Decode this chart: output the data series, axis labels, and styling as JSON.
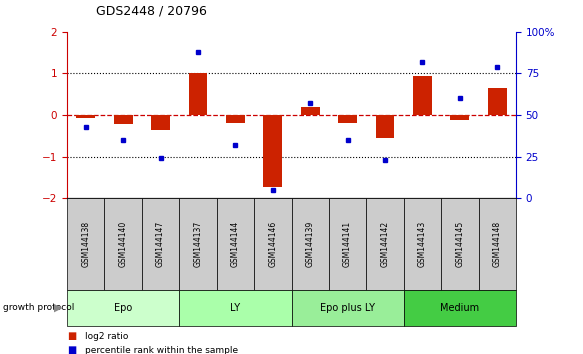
{
  "title": "GDS2448 / 20796",
  "samples": [
    "GSM144138",
    "GSM144140",
    "GSM144147",
    "GSM144137",
    "GSM144144",
    "GSM144146",
    "GSM144139",
    "GSM144141",
    "GSM144142",
    "GSM144143",
    "GSM144145",
    "GSM144148"
  ],
  "log2_ratio": [
    -0.08,
    -0.22,
    -0.35,
    1.02,
    -0.18,
    -1.72,
    0.2,
    -0.18,
    -0.55,
    0.95,
    -0.12,
    0.65
  ],
  "percentile_rank": [
    43,
    35,
    24,
    88,
    32,
    5,
    57,
    35,
    23,
    82,
    60,
    79
  ],
  "groups": [
    {
      "label": "Epo",
      "start": 0,
      "end": 3,
      "color": "#ccffcc"
    },
    {
      "label": "LY",
      "start": 3,
      "end": 6,
      "color": "#aaffaa"
    },
    {
      "label": "Epo plus LY",
      "start": 6,
      "end": 9,
      "color": "#99ee99"
    },
    {
      "label": "Medium",
      "start": 9,
      "end": 12,
      "color": "#44cc44"
    }
  ],
  "ylim_left": [
    -2,
    2
  ],
  "ylim_right": [
    0,
    100
  ],
  "bar_color": "#cc2200",
  "dot_color": "#0000cc",
  "background_color": "#ffffff",
  "zero_line_color": "#cc0000",
  "growth_protocol_label": "growth protocol",
  "sample_box_color": "#cccccc",
  "left_axis_color": "#cc0000",
  "right_axis_color": "#0000cc"
}
